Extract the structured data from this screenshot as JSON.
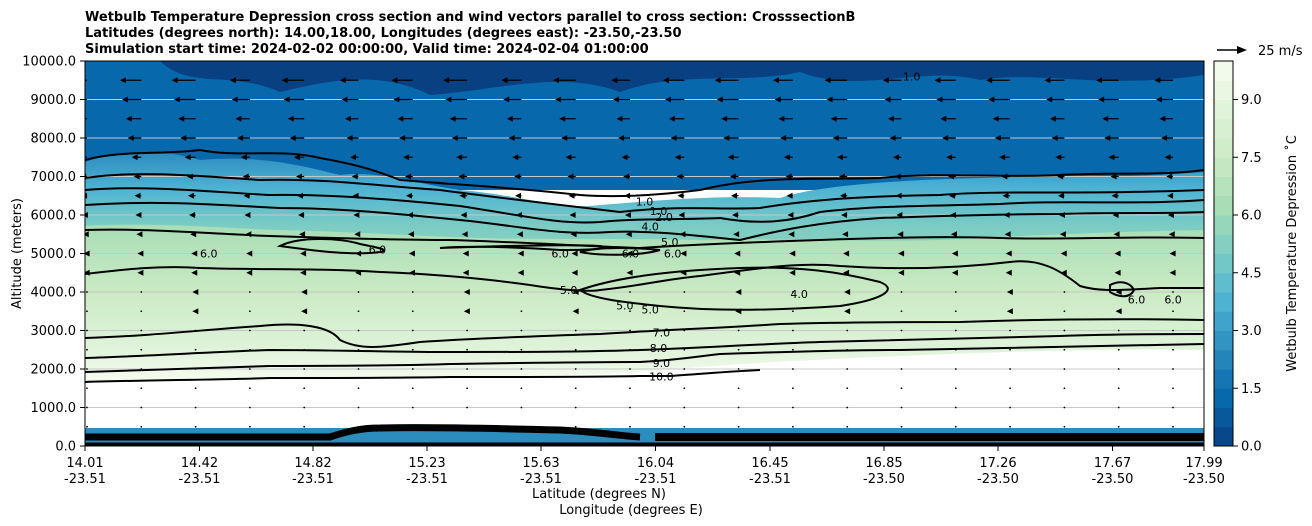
{
  "chart_data": {
    "type": "contour",
    "title": [
      "Wetbulb Temperature Depression cross section and wind vectors parallel to cross section: CrosssectionB",
      "Latitudes (degrees north): 14.00,18.00, Longitudes (degrees east): -23.50,-23.50",
      "Simulation start time: 2024-02-02 00:00:00, Valid time: 2024-02-04 01:00:00"
    ],
    "ylabel": "Altitude (meters)",
    "xlabel_lat": "Latitude (degrees N)",
    "xlabel_lon": "Longitude (degrees E)",
    "ylim": [
      0,
      10000
    ],
    "xlim": [
      14.01,
      17.99
    ],
    "y_ticks": [
      0,
      1000,
      2000,
      3000,
      4000,
      5000,
      6000,
      7000,
      8000,
      9000,
      10000
    ],
    "y_tick_labels": [
      "0.0",
      "1000.0",
      "2000.0",
      "3000.0",
      "4000.0",
      "5000.0",
      "6000.0",
      "7000.0",
      "8000.0",
      "9000.0",
      "10000.0"
    ],
    "x_ticks": [
      {
        "lat": "14.01",
        "lon": "-23.51"
      },
      {
        "lat": "14.42",
        "lon": "-23.51"
      },
      {
        "lat": "14.82",
        "lon": "-23.51"
      },
      {
        "lat": "15.23",
        "lon": "-23.51"
      },
      {
        "lat": "15.63",
        "lon": "-23.51"
      },
      {
        "lat": "16.04",
        "lon": "-23.51"
      },
      {
        "lat": "16.45",
        "lon": "-23.51"
      },
      {
        "lat": "16.85",
        "lon": "-23.50"
      },
      {
        "lat": "17.26",
        "lon": "-23.50"
      },
      {
        "lat": "17.67",
        "lon": "-23.50"
      },
      {
        "lat": "17.99",
        "lon": "-23.50"
      }
    ],
    "colorbar": {
      "label": "Wetbulb Temperature Depression ˚C",
      "range": [
        0,
        10
      ],
      "ticks": [
        0.0,
        1.5,
        3.0,
        4.5,
        6.0,
        7.5,
        9.0
      ],
      "tick_labels": [
        "0.0",
        "1.5",
        "3.0",
        "4.5",
        "6.0",
        "7.5",
        "9.0"
      ],
      "colors": [
        "#084081",
        "#0868ac",
        "#2b8cbe",
        "#4eb3d3",
        "#7bccc4",
        "#a8ddb5",
        "#ccebc5",
        "#e0f3db",
        "#f7fcf0"
      ]
    },
    "wind_key": {
      "label": "25 m/s",
      "speed": 25
    },
    "contour_levels": [
      "1.0",
      "2.0",
      "4.0",
      "5.0",
      "6.0",
      "7.0",
      "8.0",
      "9.0",
      "10.0"
    ],
    "contour_labels": [
      {
        "text": "1.0",
        "x": 16.0,
        "y": 6350
      },
      {
        "text": "1.0",
        "x": 16.05,
        "y": 6100
      },
      {
        "text": "2.0",
        "x": 16.07,
        "y": 5950
      },
      {
        "text": "4.0",
        "x": 16.02,
        "y": 5700
      },
      {
        "text": "5.0",
        "x": 16.09,
        "y": 5300
      },
      {
        "text": "6.0",
        "x": 14.45,
        "y": 5000
      },
      {
        "text": "6.0",
        "x": 15.05,
        "y": 5100
      },
      {
        "text": "6.0",
        "x": 15.7,
        "y": 5000
      },
      {
        "text": "6.0",
        "x": 15.95,
        "y": 5000
      },
      {
        "text": "6.0",
        "x": 16.1,
        "y": 5000
      },
      {
        "text": "5.0",
        "x": 15.73,
        "y": 4050
      },
      {
        "text": "5.0",
        "x": 15.93,
        "y": 3650
      },
      {
        "text": "5.0",
        "x": 16.02,
        "y": 3550
      },
      {
        "text": "4.0",
        "x": 16.55,
        "y": 3950
      },
      {
        "text": "6.0",
        "x": 17.75,
        "y": 3800
      },
      {
        "text": "6.0",
        "x": 17.88,
        "y": 3800
      },
      {
        "text": "7.0",
        "x": 16.06,
        "y": 2950
      },
      {
        "text": "8.0",
        "x": 16.05,
        "y": 2550
      },
      {
        "text": "9.0",
        "x": 16.06,
        "y": 2150
      },
      {
        "text": "10.0",
        "x": 16.06,
        "y": 1800
      },
      {
        "text": "1.0",
        "x": 16.95,
        "y": 9600
      }
    ]
  }
}
